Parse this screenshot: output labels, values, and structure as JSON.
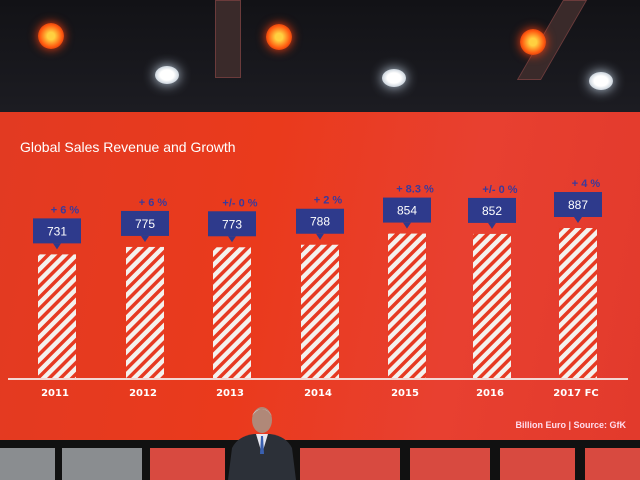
{
  "chart_data": {
    "type": "bar",
    "title": "Global Sales Revenue and Growth",
    "categories": [
      "2011",
      "2012",
      "2013",
      "2014",
      "2015",
      "2016",
      "2017 FC"
    ],
    "values": [
      731,
      775,
      773,
      788,
      854,
      852,
      887
    ],
    "value_labels": [
      "731",
      "775",
      "773",
      "788",
      "854",
      "852",
      "887"
    ],
    "growth_labels": [
      "+ 6 %",
      "+ 6 %",
      "+/- 0 %",
      "+ 2 %",
      "+ 8.3 %",
      "+/- 0 %",
      "+ 4 %"
    ],
    "unit_note": "Billion Euro  |  Source: GfK",
    "ylim": [
      0,
      900
    ],
    "grid": false,
    "colors": {
      "background": "#e63a22",
      "bar_stripe": "#ffffff",
      "label_box": "#2e3a8c",
      "growth_text": "#3a3a9c"
    }
  }
}
